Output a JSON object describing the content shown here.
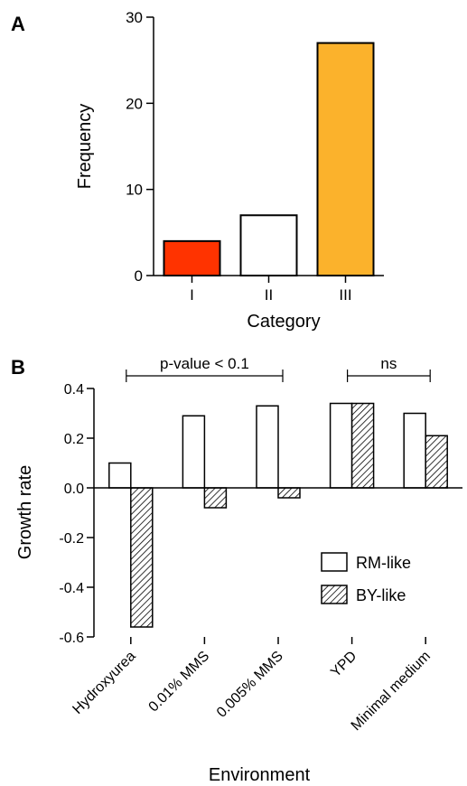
{
  "chart_data": [
    {
      "panel_label": "A",
      "type": "bar",
      "categories": [
        "I",
        "II",
        "III"
      ],
      "values": [
        4,
        7,
        27
      ],
      "colors": [
        "#ff3300",
        "#ffffff",
        "#fbb22c"
      ],
      "xlabel": "Category",
      "ylabel": "Frequency",
      "ylim": [
        0,
        30
      ],
      "yticks": [
        "0",
        "10",
        "20",
        "30"
      ],
      "grid": false
    },
    {
      "panel_label": "B",
      "type": "bar",
      "categories": [
        "Hydroxyurea",
        "0.01% MMS",
        "0.005% MMS",
        "YPD",
        "Minimal medium"
      ],
      "series": [
        {
          "name": "RM-like",
          "values": [
            0.1,
            0.29,
            0.33,
            0.34,
            0.3
          ],
          "fill": "white"
        },
        {
          "name": "BY-like",
          "values": [
            -0.56,
            -0.08,
            -0.04,
            0.34,
            0.21
          ],
          "fill": "hatched"
        }
      ],
      "xlabel": "Environment",
      "ylabel": "Growth rate",
      "ylim": [
        -0.6,
        0.4
      ],
      "yticks": [
        "0.4",
        "0.2",
        "0.0",
        "-0.2",
        "-0.4",
        "-0.6"
      ],
      "legend_position": "right",
      "annotations": [
        {
          "text": "p-value < 0.1",
          "span": [
            "Hydroxyurea",
            "0.005% MMS"
          ]
        },
        {
          "text": "ns",
          "span": [
            "YPD",
            "Minimal medium"
          ]
        }
      ],
      "grid": false
    }
  ]
}
